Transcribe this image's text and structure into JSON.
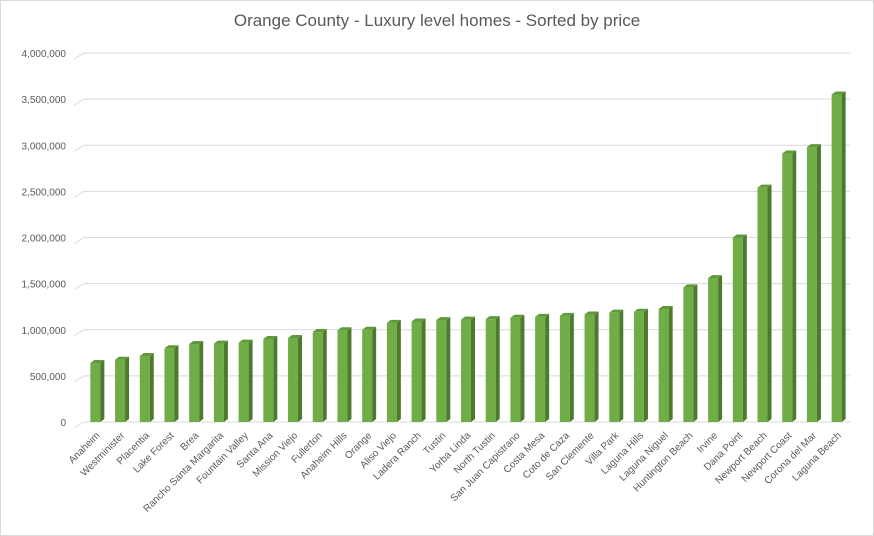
{
  "chart_data": {
    "type": "bar",
    "title": "Orange County - Luxury level homes - Sorted by price",
    "xlabel": "",
    "ylabel": "",
    "ylim": [
      0,
      4000000
    ],
    "yticks": [
      0,
      500000,
      1000000,
      1500000,
      2000000,
      2500000,
      3000000,
      3500000,
      4000000
    ],
    "ytick_labels": [
      "0",
      "500,000",
      "1,000,000",
      "1,500,000",
      "2,000,000",
      "2,500,000",
      "3,000,000",
      "3,500,000",
      "4,000,000"
    ],
    "grid": true,
    "legend": "none",
    "bar_color": "#70ad47",
    "bar_side_color": "#4e7a30",
    "categories": [
      "Anaheim",
      "Westminister",
      "Placentia",
      "Lake Forest",
      "Brea",
      "Rancho Santa Margarita",
      "Fountain Valley",
      "Santa Ana",
      "Mission Viejo",
      "Fullerton",
      "Anaheim Hills",
      "Orange",
      "Aliso Viejo",
      "Ladera Ranch",
      "Tustin",
      "Yorba Linda",
      "North Tustin",
      "San Juan Capistrano",
      "Costa Mesa",
      "Coto de Caza",
      "San Clemente",
      "Villa Park",
      "Laguna Hills",
      "Laguna Niguel",
      "Huntington Beach",
      "Irvine",
      "Dana Point",
      "Newport Beach",
      "Newport Coast",
      "Corona del Mar",
      "Laguna Beach"
    ],
    "values": [
      640000,
      675000,
      715000,
      800000,
      845000,
      850000,
      860000,
      900000,
      910000,
      975000,
      995000,
      1000000,
      1075000,
      1090000,
      1105000,
      1110000,
      1115000,
      1130000,
      1140000,
      1150000,
      1165000,
      1185000,
      1195000,
      1225000,
      1460000,
      1560000,
      2000000,
      2540000,
      2910000,
      2980000,
      3550000
    ]
  }
}
